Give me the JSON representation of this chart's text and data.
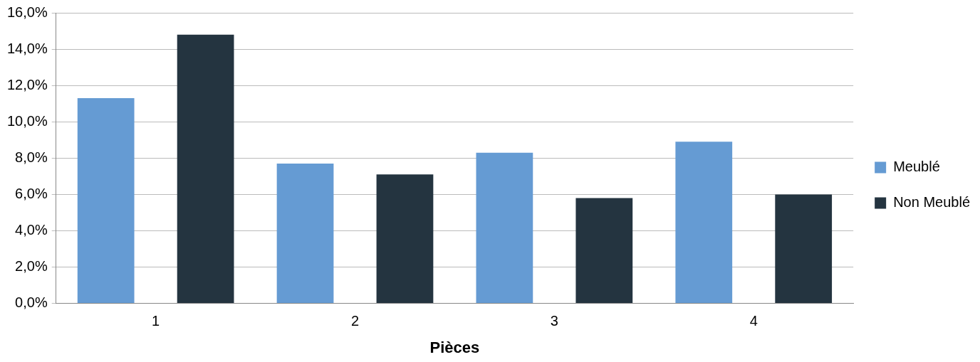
{
  "chart_data": {
    "type": "bar",
    "xlabel": "Pièces",
    "categories": [
      "1",
      "2",
      "3",
      "4"
    ],
    "series": [
      {
        "name": "Meublé",
        "color": "#659bd3",
        "values": [
          11.3,
          7.7,
          8.3,
          8.9
        ]
      },
      {
        "name": "Non Meublé",
        "color": "#243440",
        "values": [
          14.8,
          7.1,
          5.8,
          6.0
        ]
      }
    ],
    "ylim": [
      0,
      16
    ],
    "yticks": [
      {
        "value": 0,
        "label": "0,0%"
      },
      {
        "value": 2,
        "label": "2,0%"
      },
      {
        "value": 4,
        "label": "4,0%"
      },
      {
        "value": 6,
        "label": "6,0%"
      },
      {
        "value": 8,
        "label": "8,0%"
      },
      {
        "value": 10,
        "label": "10,0%"
      },
      {
        "value": 12,
        "label": "12,0%"
      },
      {
        "value": 14,
        "label": "14,0%"
      },
      {
        "value": 16,
        "label": "16,0%"
      }
    ],
    "grid": "y",
    "legend": "right"
  }
}
